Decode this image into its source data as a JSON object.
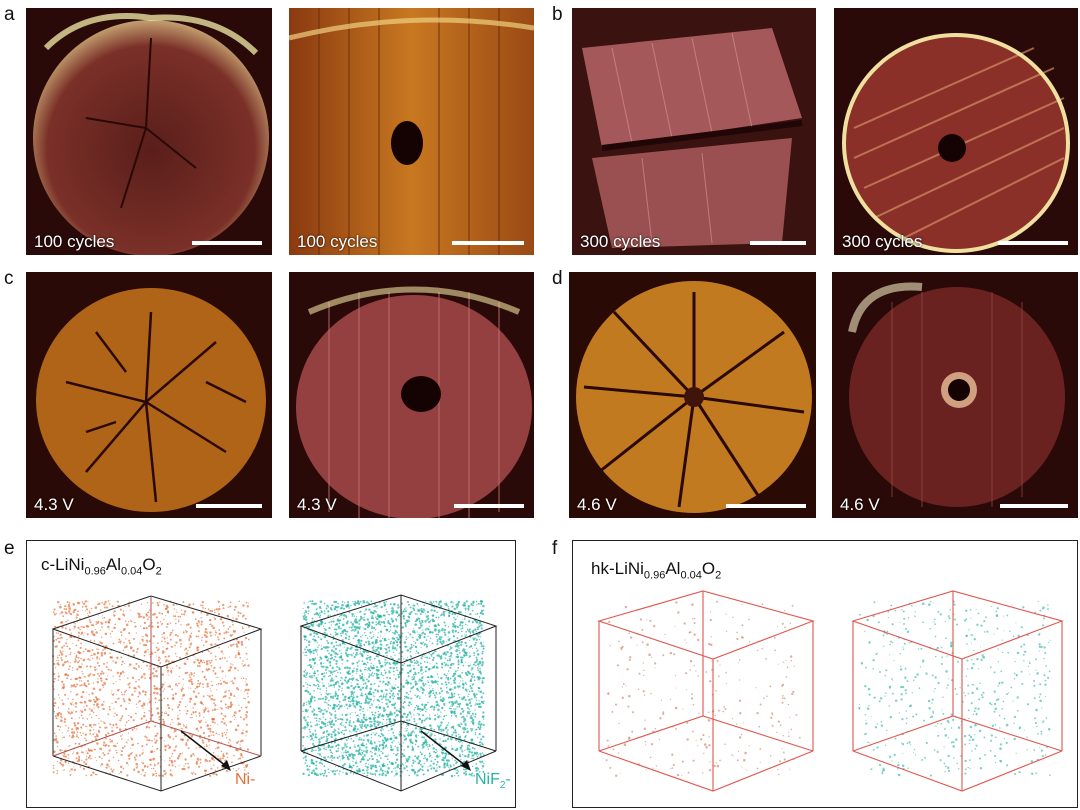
{
  "panel_letters": {
    "a": "a",
    "b": "b",
    "c": "c",
    "d": "d",
    "e": "e",
    "f": "f"
  },
  "sem_images": [
    {
      "caption": "100 cycles",
      "style": "cracked-dark"
    },
    {
      "caption": "100 cycles",
      "style": "hollow-gold"
    },
    {
      "caption": "300 cycles",
      "style": "split-pink"
    },
    {
      "caption": "300 cycles",
      "style": "hollow-striped"
    },
    {
      "caption": "4.3 V",
      "style": "cracked-gold"
    },
    {
      "caption": "4.3 V",
      "style": "hollow-red"
    },
    {
      "caption": "4.6 V",
      "style": "cracked-radial"
    },
    {
      "caption": "4.6 V",
      "style": "hollow-dark"
    }
  ],
  "panel_e": {
    "formula_prefix": "c-LiNi",
    "sub1": "0.96",
    "mid": "Al",
    "sub2": "0.04",
    "o": "O",
    "sub3": "2",
    "ion1": "Ni-",
    "ion2_prefix": "NiF",
    "ion2_sub": "2",
    "ion2_suffix": "-"
  },
  "panel_f": {
    "formula_prefix": "hk-LiNi",
    "sub1": "0.96",
    "mid": "Al",
    "sub2": "0.04",
    "o": "O",
    "sub3": "2"
  },
  "colors": {
    "orange": "#e2703a",
    "teal": "#28b3a4",
    "cube_dark": "#222",
    "cube_red": "#e0574f"
  }
}
